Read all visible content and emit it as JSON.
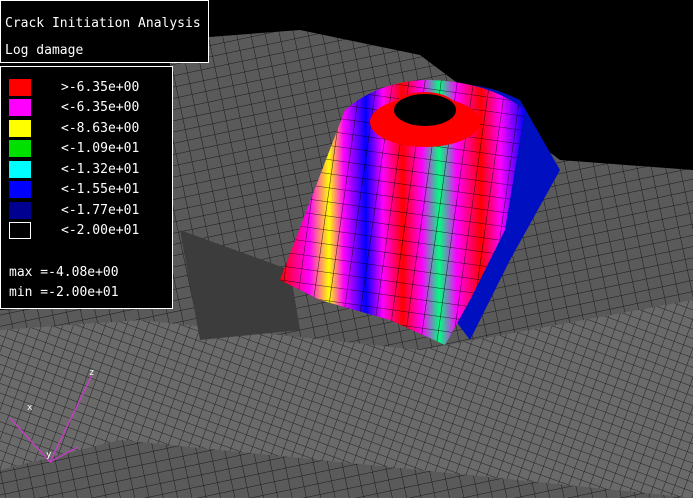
{
  "header": {
    "title": "Crack Initiation Analysis",
    "subtitle": "Log damage"
  },
  "legend": {
    "entries": [
      {
        "color": "#ff0000",
        "label": ">-6.35e+00"
      },
      {
        "color": "#ff00ff",
        "label": "<-6.35e+00"
      },
      {
        "color": "#ffff00",
        "label": "<-8.63e+00"
      },
      {
        "color": "#00e000",
        "label": "<-1.09e+01"
      },
      {
        "color": "#00ffff",
        "label": "<-1.32e+01"
      },
      {
        "color": "#0000ff",
        "label": "<-1.55e+01"
      },
      {
        "color": "#000090",
        "label": "<-1.77e+01"
      },
      {
        "color": "#000000",
        "label": "<-2.00e+01"
      }
    ],
    "max": "max =-4.08e+00",
    "min": "min =-2.00e+01"
  },
  "axes": {
    "x": "x",
    "y": "y",
    "z": "z"
  }
}
